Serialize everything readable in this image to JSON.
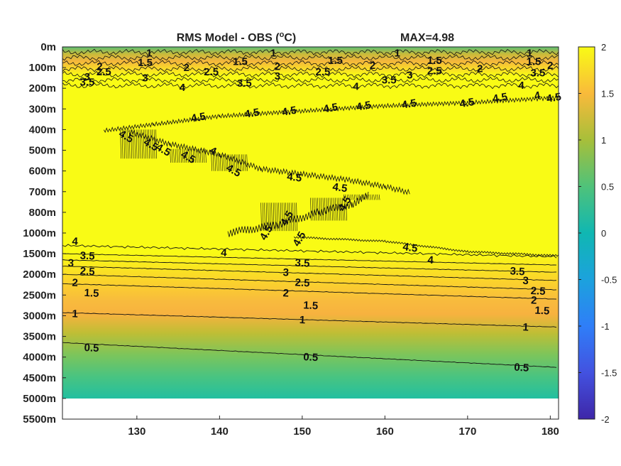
{
  "chart_data": {
    "type": "heatmap",
    "title_main": "RMS Model - OBS (",
    "title_sup": "o",
    "title_unit": "C)",
    "max_label": "MAX=4.98",
    "x_ticks": [
      130,
      140,
      150,
      160,
      170,
      180
    ],
    "x_tick_labels": [
      "130",
      "140",
      "150",
      "160",
      "170",
      "180"
    ],
    "xlim": [
      121,
      181
    ],
    "depth_levels": [
      "0m",
      "100m",
      "200m",
      "300m",
      "400m",
      "500m",
      "600m",
      "700m",
      "800m",
      "1000m",
      "1500m",
      "2000m",
      "2500m",
      "3000m",
      "3500m",
      "4000m",
      "4500m",
      "5000m",
      "5500m"
    ],
    "data_depth_levels": 17,
    "colorbar": {
      "range": [
        -2,
        2
      ],
      "ticks": [
        2,
        1.5,
        1,
        0.5,
        0,
        -0.5,
        -1,
        -1.5,
        -2
      ],
      "tick_labels": [
        "2",
        "1.5",
        "1",
        "0.5",
        "0",
        "-0.5",
        "-1",
        "-1.5",
        "-2"
      ],
      "colormap": "parula"
    },
    "contour_levels_deep": [
      {
        "level": 4,
        "label": "4",
        "y_at_121": 9.6,
        "y_at_181": 10.15
      },
      {
        "level": 3.5,
        "label": "3.5",
        "y_at_121": 10.0,
        "y_at_181": 10.55
      },
      {
        "level": 3,
        "label": "3",
        "y_at_121": 10.3,
        "y_at_181": 10.9
      },
      {
        "level": 2.5,
        "label": "2.5",
        "y_at_121": 10.6,
        "y_at_181": 11.3
      },
      {
        "level": 2,
        "label": "2",
        "y_at_121": 11.0,
        "y_at_181": 11.75
      },
      {
        "level": 1.5,
        "label": "1.5",
        "y_at_121": 11.45,
        "y_at_181": 12.2
      },
      {
        "level": 1,
        "label": "1",
        "y_at_121": 12.85,
        "y_at_181": 13.55
      },
      {
        "level": 0.5,
        "label": "0.5",
        "y_at_121": 14.3,
        "y_at_181": 15.5
      }
    ],
    "contour_levels_shallow": [
      "1",
      "1.5",
      "2",
      "2.5",
      "3",
      "3.5",
      "4"
    ],
    "shallow_contour_labels": [
      {
        "label": "1",
        "x": 131.5,
        "y": 0.3
      },
      {
        "label": "1.5",
        "x": 131,
        "y": 0.75
      },
      {
        "label": "2",
        "x": 125.5,
        "y": 0.95
      },
      {
        "label": "2.5",
        "x": 126,
        "y": 1.2
      },
      {
        "label": "3",
        "x": 124,
        "y": 1.45
      },
      {
        "label": "3.5",
        "x": 124,
        "y": 1.7
      },
      {
        "label": "3",
        "x": 131,
        "y": 1.5
      },
      {
        "label": "4",
        "x": 135.5,
        "y": 1.95
      },
      {
        "label": "2",
        "x": 136,
        "y": 1.0
      },
      {
        "label": "2.5",
        "x": 139,
        "y": 1.2
      },
      {
        "label": "1.5",
        "x": 142.5,
        "y": 0.7
      },
      {
        "label": "1",
        "x": 146.5,
        "y": 0.3
      },
      {
        "label": "2",
        "x": 147,
        "y": 0.95
      },
      {
        "label": "3",
        "x": 147,
        "y": 1.4
      },
      {
        "label": "3.5",
        "x": 143,
        "y": 1.75
      },
      {
        "label": "2.5",
        "x": 152.5,
        "y": 1.2
      },
      {
        "label": "1.5",
        "x": 154,
        "y": 0.65
      },
      {
        "label": "2",
        "x": 158.5,
        "y": 0.9
      },
      {
        "label": "4",
        "x": 156.5,
        "y": 1.9
      },
      {
        "label": "3.5",
        "x": 160.5,
        "y": 1.6
      },
      {
        "label": "1",
        "x": 161.5,
        "y": 0.3
      },
      {
        "label": "1.5",
        "x": 166,
        "y": 0.65
      },
      {
        "label": "3",
        "x": 163,
        "y": 1.35
      },
      {
        "label": "2.5",
        "x": 166,
        "y": 1.15
      },
      {
        "label": "2",
        "x": 171.5,
        "y": 1.05
      },
      {
        "label": "4",
        "x": 176.5,
        "y": 1.85
      },
      {
        "label": "1",
        "x": 177.5,
        "y": 0.3
      },
      {
        "label": "1.5",
        "x": 178,
        "y": 0.7
      },
      {
        "label": "3.5",
        "x": 178.5,
        "y": 1.25
      },
      {
        "label": "2",
        "x": 180,
        "y": 0.9
      }
    ],
    "mid_contour_labels": [
      {
        "label": "4.5",
        "x": 137.5,
        "y": 3.4
      },
      {
        "label": "4.5",
        "x": 144,
        "y": 3.2
      },
      {
        "label": "4.5",
        "x": 148.5,
        "y": 3.1
      },
      {
        "label": "4.5",
        "x": 153.5,
        "y": 2.95
      },
      {
        "label": "4.5",
        "x": 157.5,
        "y": 2.85
      },
      {
        "label": "4.5",
        "x": 163,
        "y": 2.75
      },
      {
        "label": "4.5",
        "x": 170,
        "y": 2.7
      },
      {
        "label": "4.5",
        "x": 174,
        "y": 2.45
      },
      {
        "label": "4",
        "x": 178.5,
        "y": 2.35
      },
      {
        "label": "4.5",
        "x": 180.5,
        "y": 2.45
      },
      {
        "label": "4.5",
        "x": 128.5,
        "y": 4.3
      },
      {
        "label": "4.5",
        "x": 131.5,
        "y": 4.7
      },
      {
        "label": "4.5",
        "x": 133,
        "y": 4.95
      },
      {
        "label": "4.5",
        "x": 136,
        "y": 5.3
      },
      {
        "label": "4",
        "x": 139,
        "y": 5.0
      },
      {
        "label": "4.5",
        "x": 141.5,
        "y": 5.95
      },
      {
        "label": "4.5",
        "x": 149,
        "y": 6.3
      },
      {
        "label": "4.5",
        "x": 154.5,
        "y": 6.8
      },
      {
        "label": "4.5",
        "x": 155.5,
        "y": 7.5
      },
      {
        "label": "4.5",
        "x": 148.5,
        "y": 8.2
      },
      {
        "label": "4.5",
        "x": 150,
        "y": 9.2
      },
      {
        "label": "4.5",
        "x": 146,
        "y": 8.9
      },
      {
        "label": "4.5",
        "x": 163,
        "y": 9.7
      }
    ],
    "deep_extra_labels": [
      {
        "label": "4",
        "x": 122.5,
        "y": 9.4
      },
      {
        "label": "4",
        "x": 140.5,
        "y": 9.95
      },
      {
        "label": "4",
        "x": 165.5,
        "y": 10.3
      },
      {
        "label": "3.5",
        "x": 124,
        "y": 10.1
      },
      {
        "label": "3.5",
        "x": 150,
        "y": 10.45
      },
      {
        "label": "3.5",
        "x": 176,
        "y": 10.85
      },
      {
        "label": "3",
        "x": 122,
        "y": 10.45
      },
      {
        "label": "3",
        "x": 148,
        "y": 10.9
      },
      {
        "label": "3",
        "x": 177,
        "y": 11.3
      },
      {
        "label": "2.5",
        "x": 124,
        "y": 10.85
      },
      {
        "label": "2.5",
        "x": 150,
        "y": 11.4
      },
      {
        "label": "2.5",
        "x": 178.5,
        "y": 11.8
      },
      {
        "label": "2",
        "x": 122.5,
        "y": 11.4
      },
      {
        "label": "2",
        "x": 148,
        "y": 11.9
      },
      {
        "label": "2",
        "x": 178,
        "y": 12.25
      },
      {
        "label": "1.5",
        "x": 124.5,
        "y": 11.9
      },
      {
        "label": "1.5",
        "x": 151,
        "y": 12.5
      },
      {
        "label": "1.5",
        "x": 179,
        "y": 12.75
      },
      {
        "label": "1",
        "x": 122.5,
        "y": 12.9
      },
      {
        "label": "1",
        "x": 150,
        "y": 13.2
      },
      {
        "label": "1",
        "x": 177,
        "y": 13.55
      },
      {
        "label": "0.5",
        "x": 124.5,
        "y": 14.55
      },
      {
        "label": "0.5",
        "x": 151,
        "y": 15.0
      },
      {
        "label": "0.5",
        "x": 176.5,
        "y": 15.5
      }
    ]
  }
}
